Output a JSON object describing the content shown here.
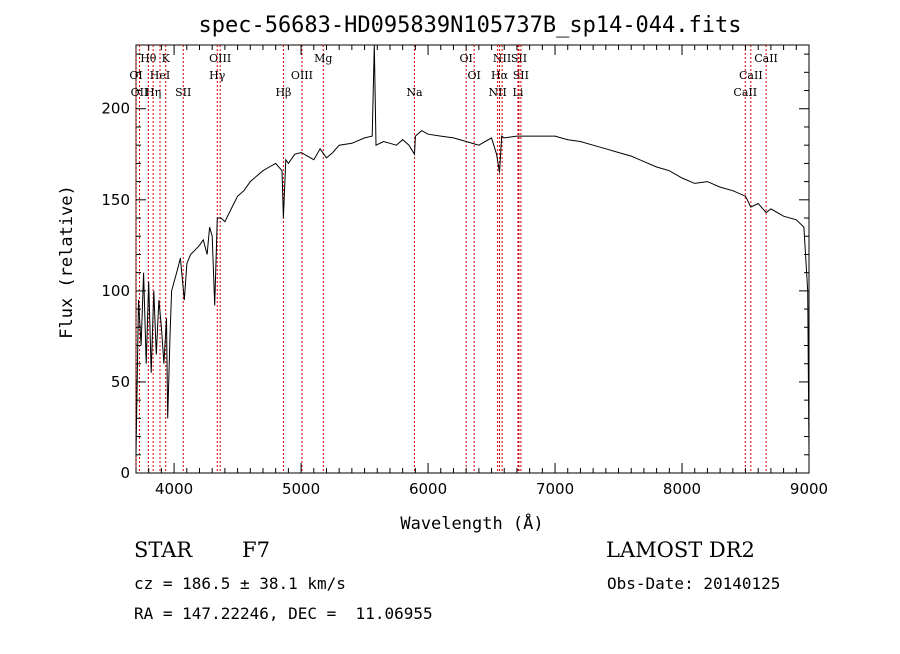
{
  "chart_data": {
    "type": "line",
    "title": "spec-56683-HD095839N105737B_sp14-044.fits",
    "xlabel": "Wavelength (Å)",
    "ylabel": "Flux (relative)",
    "xlim": [
      3700,
      9000
    ],
    "ylim": [
      0,
      235
    ],
    "xticks": [
      4000,
      5000,
      6000,
      7000,
      8000,
      9000
    ],
    "yticks": [
      0,
      50,
      100,
      150,
      200
    ],
    "line_color": "#000000",
    "marker_color": "#cc0000",
    "series": [
      {
        "x": [
          3700,
          3720,
          3740,
          3760,
          3780,
          3800,
          3820,
          3840,
          3860,
          3880,
          3900,
          3920,
          3940,
          3950,
          3968,
          3980,
          4000,
          4020,
          4050,
          4080,
          4101,
          4130,
          4160,
          4200,
          4230,
          4260,
          4280,
          4300,
          4320,
          4340,
          4370,
          4400,
          4450,
          4500,
          4550,
          4600,
          4650,
          4700,
          4750,
          4800,
          4850,
          4861,
          4880,
          4900,
          4950,
          5000,
          5050,
          5100,
          5150,
          5200,
          5250,
          5300,
          5400,
          5500,
          5560,
          5577,
          5590,
          5650,
          5700,
          5750,
          5800,
          5850,
          5893,
          5900,
          5950,
          6000,
          6100,
          6200,
          6300,
          6400,
          6500,
          6540,
          6563,
          6580,
          6600,
          6700,
          6800,
          6900,
          7000,
          7100,
          7200,
          7300,
          7400,
          7500,
          7600,
          7700,
          7800,
          7900,
          8000,
          8100,
          8200,
          8300,
          8400,
          8500,
          8542,
          8600,
          8662,
          8700,
          8800,
          8900,
          8960,
          8990,
          9000
        ],
        "y": [
          10,
          95,
          70,
          110,
          60,
          105,
          55,
          100,
          65,
          95,
          80,
          60,
          85,
          30,
          75,
          100,
          105,
          110,
          118,
          95,
          115,
          120,
          122,
          125,
          128,
          120,
          135,
          130,
          92,
          140,
          140,
          138,
          145,
          152,
          155,
          160,
          163,
          166,
          168,
          170,
          166,
          140,
          172,
          170,
          175,
          176,
          174,
          172,
          178,
          173,
          176,
          180,
          181,
          184,
          185,
          235,
          180,
          182,
          181,
          180,
          183,
          180,
          175,
          185,
          188,
          186,
          185,
          184,
          182,
          180,
          184,
          175,
          165,
          185,
          184,
          185,
          185,
          185,
          185,
          183,
          182,
          180,
          178,
          176,
          174,
          171,
          168,
          166,
          162,
          159,
          160,
          157,
          155,
          152,
          146,
          148,
          143,
          145,
          141,
          139,
          135,
          100,
          10
        ]
      }
    ],
    "line_markers": [
      {
        "label": "Hθ",
        "x": 3797,
        "row": 0
      },
      {
        "label": "K",
        "x": 3934,
        "row": 0
      },
      {
        "label": "OIII",
        "x": 4363,
        "row": 0
      },
      {
        "label": "Mg",
        "x": 5175,
        "row": 0
      },
      {
        "label": "OI",
        "x": 6300,
        "row": 0
      },
      {
        "label": "NII",
        "x": 6583,
        "row": 0
      },
      {
        "label": "SII",
        "x": 6716,
        "row": 0
      },
      {
        "label": "CaII",
        "x": 8662,
        "row": 0
      },
      {
        "label": "OI",
        "x": 3700,
        "row": 1
      },
      {
        "label": "HeI",
        "x": 3889,
        "row": 1
      },
      {
        "label": "Hγ",
        "x": 4340,
        "row": 1
      },
      {
        "label": "OIII",
        "x": 5007,
        "row": 1
      },
      {
        "label": "OI",
        "x": 6363,
        "row": 1
      },
      {
        "label": "Hα",
        "x": 6563,
        "row": 1
      },
      {
        "label": "SII",
        "x": 6731,
        "row": 1
      },
      {
        "label": "CaII",
        "x": 8542,
        "row": 1
      },
      {
        "label": "OII",
        "x": 3727,
        "row": 2
      },
      {
        "label": "Hη",
        "x": 3835,
        "row": 2
      },
      {
        "label": "SII",
        "x": 4072,
        "row": 2
      },
      {
        "label": "Hβ",
        "x": 4861,
        "row": 2
      },
      {
        "label": "Na",
        "x": 5893,
        "row": 2
      },
      {
        "label": "NII",
        "x": 6548,
        "row": 2
      },
      {
        "label": "Li",
        "x": 6708,
        "row": 2
      },
      {
        "label": "CaII",
        "x": 8498,
        "row": 2
      }
    ]
  },
  "info": {
    "object_type": "STAR",
    "subclass": "F7",
    "survey": "LAMOST DR2",
    "redshift_line": "cz = 186.5 ± 38.1 km/s",
    "obs_date_line": "Obs-Date: 20140125",
    "coords_line": "RA = 147.22246, DEC =  11.06955"
  }
}
